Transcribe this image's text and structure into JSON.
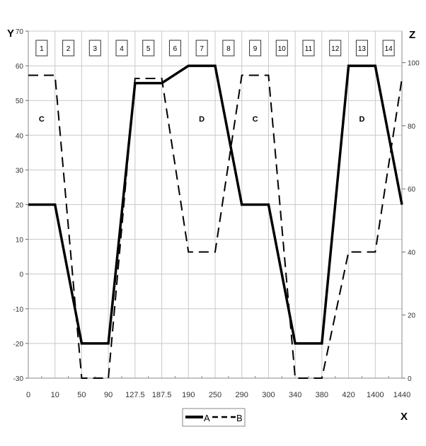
{
  "chart_data": {
    "type": "line",
    "title": "",
    "xlabel": "X",
    "ylabel": "Y",
    "y2label": "Z",
    "categories": [
      "0",
      "10",
      "50",
      "90",
      "127.5",
      "187.5",
      "190",
      "250",
      "290",
      "300",
      "340",
      "380",
      "420",
      "1400",
      "1440"
    ],
    "ylim": [
      -30,
      70
    ],
    "yticks": [
      -30,
      -20,
      -10,
      0,
      10,
      20,
      30,
      40,
      50,
      60,
      70
    ],
    "y2lim": [
      0,
      110
    ],
    "y2ticks": [
      0,
      20,
      40,
      60,
      80,
      100
    ],
    "grid": true,
    "legend_placement": "bottom",
    "series": [
      {
        "name": "A",
        "axis": "left",
        "style": "solid",
        "values": [
          20,
          20,
          -20,
          -20,
          55,
          55,
          60,
          60,
          20,
          20,
          -20,
          -20,
          60,
          60,
          20
        ]
      },
      {
        "name": "B",
        "axis": "right",
        "style": "dashed",
        "values": [
          96,
          96,
          0,
          0,
          95,
          95,
          40,
          40,
          96,
          96,
          0,
          0,
          40,
          40,
          95
        ]
      }
    ],
    "interval_labels": [
      "1",
      "2",
      "3",
      "4",
      "5",
      "6",
      "7",
      "8",
      "9",
      "10",
      "11",
      "12",
      "13",
      "14"
    ],
    "annotations": [
      {
        "text": "C",
        "interval": 1
      },
      {
        "text": "D",
        "interval": 7
      },
      {
        "text": "C",
        "interval": 9
      },
      {
        "text": "D",
        "interval": 13
      }
    ]
  }
}
